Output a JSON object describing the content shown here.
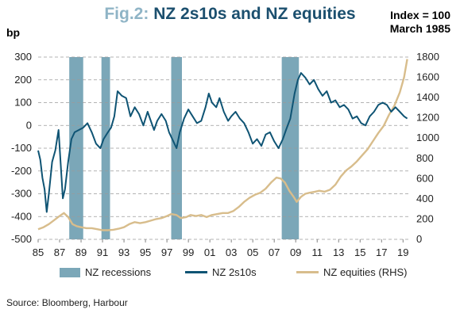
{
  "header": {
    "fig_label": "Fig.2:",
    "title": "NZ 2s10s and NZ equities",
    "note_line1": "Index = 100",
    "note_line2": "March 1985",
    "unit": "bp"
  },
  "source": "Source: Bloomberg, Harbour",
  "colors": {
    "recession": "#7ba7b8",
    "spread": "#0f5474",
    "equities": "#d8bd8c",
    "grid": "#9a9a9a",
    "title": "#1b4f6e",
    "fig_label": "#8fb4c6"
  },
  "chart_data": {
    "type": "line",
    "x_range": [
      1985,
      2019.5
    ],
    "x_ticks": [
      "85",
      "87",
      "89",
      "91",
      "93",
      "95",
      "97",
      "99",
      "01",
      "03",
      "05",
      "07",
      "09",
      "11",
      "13",
      "15",
      "17",
      "19"
    ],
    "y_left": {
      "label": "bp",
      "range": [
        -500,
        300
      ],
      "ticks": [
        "300",
        "200",
        "100",
        "0",
        "-100",
        "-200",
        "-300",
        "-400",
        "-500"
      ]
    },
    "y_right": {
      "label": "",
      "range": [
        0,
        1800
      ],
      "ticks": [
        "1800",
        "1600",
        "1400",
        "1200",
        "1000",
        "800",
        "600",
        "400",
        "200",
        "0"
      ]
    },
    "grid": "horizontal dashed",
    "legend_position": "bottom",
    "recessions": [
      {
        "start": 1987.9,
        "end": 1989.2
      },
      {
        "start": 1990.9,
        "end": 1991.7
      },
      {
        "start": 1997.4,
        "end": 1998.4
      },
      {
        "start": 2007.7,
        "end": 2009.3
      }
    ],
    "series": [
      {
        "name": "NZ 2s10s",
        "axis": "left",
        "points": [
          [
            1985.0,
            -110
          ],
          [
            1985.2,
            -150
          ],
          [
            1985.4,
            -230
          ],
          [
            1985.6,
            -280
          ],
          [
            1985.8,
            -380
          ],
          [
            1986.0,
            -300
          ],
          [
            1986.3,
            -160
          ],
          [
            1986.6,
            -110
          ],
          [
            1986.9,
            -20
          ],
          [
            1987.1,
            -170
          ],
          [
            1987.3,
            -320
          ],
          [
            1987.5,
            -280
          ],
          [
            1987.8,
            -160
          ],
          [
            1988.1,
            -60
          ],
          [
            1988.4,
            -30
          ],
          [
            1988.8,
            -20
          ],
          [
            1989.2,
            -10
          ],
          [
            1989.6,
            10
          ],
          [
            1990.0,
            -30
          ],
          [
            1990.4,
            -80
          ],
          [
            1990.8,
            -100
          ],
          [
            1991.1,
            -60
          ],
          [
            1991.5,
            -30
          ],
          [
            1991.8,
            -10
          ],
          [
            1992.1,
            40
          ],
          [
            1992.4,
            150
          ],
          [
            1992.8,
            130
          ],
          [
            1993.2,
            120
          ],
          [
            1993.6,
            40
          ],
          [
            1994.0,
            80
          ],
          [
            1994.4,
            50
          ],
          [
            1994.8,
            0
          ],
          [
            1995.2,
            60
          ],
          [
            1995.5,
            20
          ],
          [
            1995.8,
            -20
          ],
          [
            1996.1,
            20
          ],
          [
            1996.5,
            50
          ],
          [
            1996.9,
            20
          ],
          [
            1997.2,
            -30
          ],
          [
            1997.6,
            -70
          ],
          [
            1997.9,
            -100
          ],
          [
            1998.2,
            -30
          ],
          [
            1998.6,
            30
          ],
          [
            1999.0,
            70
          ],
          [
            1999.4,
            40
          ],
          [
            1999.8,
            10
          ],
          [
            2000.2,
            20
          ],
          [
            2000.6,
            80
          ],
          [
            2000.9,
            140
          ],
          [
            2001.2,
            100
          ],
          [
            2001.6,
            80
          ],
          [
            2001.9,
            120
          ],
          [
            2002.3,
            60
          ],
          [
            2002.7,
            20
          ],
          [
            2003.0,
            40
          ],
          [
            2003.4,
            60
          ],
          [
            2003.8,
            30
          ],
          [
            2004.2,
            10
          ],
          [
            2004.6,
            -30
          ],
          [
            2005.0,
            -80
          ],
          [
            2005.4,
            -60
          ],
          [
            2005.8,
            -90
          ],
          [
            2006.2,
            -40
          ],
          [
            2006.6,
            -30
          ],
          [
            2007.0,
            -70
          ],
          [
            2007.4,
            -100
          ],
          [
            2007.8,
            -60
          ],
          [
            2008.1,
            -20
          ],
          [
            2008.5,
            30
          ],
          [
            2008.9,
            140
          ],
          [
            2009.2,
            200
          ],
          [
            2009.5,
            230
          ],
          [
            2009.9,
            210
          ],
          [
            2010.3,
            180
          ],
          [
            2010.7,
            200
          ],
          [
            2011.1,
            160
          ],
          [
            2011.5,
            130
          ],
          [
            2011.9,
            150
          ],
          [
            2012.3,
            100
          ],
          [
            2012.7,
            110
          ],
          [
            2013.1,
            80
          ],
          [
            2013.5,
            90
          ],
          [
            2013.9,
            70
          ],
          [
            2014.3,
            30
          ],
          [
            2014.7,
            40
          ],
          [
            2015.1,
            10
          ],
          [
            2015.5,
            0
          ],
          [
            2015.9,
            40
          ],
          [
            2016.3,
            60
          ],
          [
            2016.7,
            90
          ],
          [
            2017.1,
            100
          ],
          [
            2017.5,
            90
          ],
          [
            2017.9,
            60
          ],
          [
            2018.3,
            80
          ],
          [
            2018.7,
            60
          ],
          [
            2019.1,
            40
          ],
          [
            2019.4,
            30
          ]
        ]
      },
      {
        "name": "NZ equities (RHS)",
        "axis": "right",
        "points": [
          [
            1985.0,
            100
          ],
          [
            1985.5,
            120
          ],
          [
            1986.0,
            150
          ],
          [
            1986.5,
            190
          ],
          [
            1987.0,
            230
          ],
          [
            1987.4,
            260
          ],
          [
            1987.8,
            220
          ],
          [
            1988.2,
            150
          ],
          [
            1988.6,
            130
          ],
          [
            1989.0,
            120
          ],
          [
            1989.5,
            110
          ],
          [
            1990.0,
            110
          ],
          [
            1990.5,
            100
          ],
          [
            1991.0,
            90
          ],
          [
            1991.5,
            90
          ],
          [
            1992.0,
            95
          ],
          [
            1992.5,
            105
          ],
          [
            1993.0,
            120
          ],
          [
            1993.5,
            150
          ],
          [
            1994.0,
            170
          ],
          [
            1994.5,
            160
          ],
          [
            1995.0,
            170
          ],
          [
            1995.5,
            185
          ],
          [
            1996.0,
            200
          ],
          [
            1996.5,
            210
          ],
          [
            1997.0,
            230
          ],
          [
            1997.4,
            250
          ],
          [
            1997.9,
            240
          ],
          [
            1998.3,
            210
          ],
          [
            1998.8,
            220
          ],
          [
            1999.2,
            240
          ],
          [
            1999.7,
            230
          ],
          [
            2000.2,
            240
          ],
          [
            2000.7,
            220
          ],
          [
            2001.2,
            240
          ],
          [
            2001.7,
            250
          ],
          [
            2002.2,
            260
          ],
          [
            2002.7,
            260
          ],
          [
            2003.2,
            280
          ],
          [
            2003.7,
            320
          ],
          [
            2004.2,
            370
          ],
          [
            2004.7,
            410
          ],
          [
            2005.2,
            440
          ],
          [
            2005.7,
            460
          ],
          [
            2006.2,
            500
          ],
          [
            2006.7,
            560
          ],
          [
            2007.2,
            610
          ],
          [
            2007.6,
            600
          ],
          [
            2008.0,
            560
          ],
          [
            2008.4,
            480
          ],
          [
            2008.8,
            420
          ],
          [
            2009.1,
            370
          ],
          [
            2009.5,
            420
          ],
          [
            2009.9,
            450
          ],
          [
            2010.3,
            460
          ],
          [
            2010.8,
            470
          ],
          [
            2011.2,
            480
          ],
          [
            2011.7,
            470
          ],
          [
            2012.2,
            490
          ],
          [
            2012.7,
            540
          ],
          [
            2013.2,
            620
          ],
          [
            2013.7,
            680
          ],
          [
            2014.2,
            720
          ],
          [
            2014.7,
            770
          ],
          [
            2015.2,
            830
          ],
          [
            2015.7,
            890
          ],
          [
            2016.2,
            970
          ],
          [
            2016.7,
            1050
          ],
          [
            2017.2,
            1120
          ],
          [
            2017.7,
            1230
          ],
          [
            2018.2,
            1320
          ],
          [
            2018.7,
            1450
          ],
          [
            2019.1,
            1600
          ],
          [
            2019.4,
            1780
          ]
        ]
      },
      {
        "name": "NZ recessions",
        "axis": "left",
        "points": []
      }
    ]
  }
}
